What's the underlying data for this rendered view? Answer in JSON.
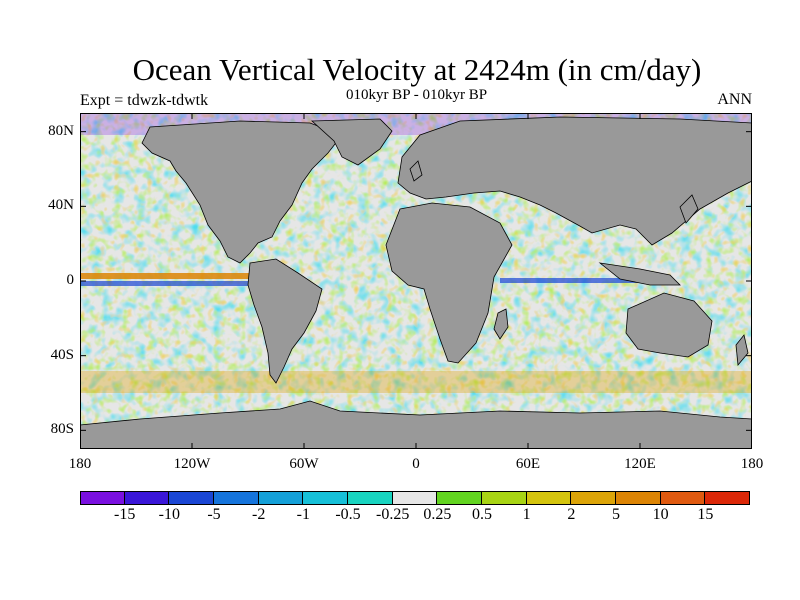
{
  "header": {
    "title": "Ocean Vertical Velocity at 2424m (in cm/day)",
    "left_subtitle": "Expt = tdwzk-tdwtk",
    "center_subtitle": "010kyr BP - 010kyr BP",
    "right_subtitle": "ANN"
  },
  "map": {
    "land_color": "#999999",
    "coast_color": "#000000",
    "lat_ticks": [
      {
        "label": "80N",
        "lat": 80
      },
      {
        "label": "40N",
        "lat": 40
      },
      {
        "label": "0",
        "lat": 0
      },
      {
        "label": "40S",
        "lat": -40
      },
      {
        "label": "80S",
        "lat": -80
      }
    ],
    "lon_ticks": [
      {
        "label": "180",
        "lon": 0
      },
      {
        "label": "120W",
        "lon": 60
      },
      {
        "label": "60W",
        "lon": 120
      },
      {
        "label": "0",
        "lon": 180
      },
      {
        "label": "60E",
        "lon": 240
      },
      {
        "label": "120E",
        "lon": 300
      },
      {
        "label": "180",
        "lon": 360
      }
    ]
  },
  "colorbar": {
    "colors": [
      "#7a10e0",
      "#3a16d8",
      "#1a46d4",
      "#1574dc",
      "#14a0d8",
      "#16c0d8",
      "#18d4c0",
      "#e6e6e6",
      "#62d420",
      "#a8d414",
      "#d4c40e",
      "#dca408",
      "#dc8404",
      "#e05a10",
      "#dc2808"
    ],
    "labels": [
      "-15",
      "-10",
      "-5",
      "-2",
      "-1",
      "-0.5",
      "-0.25",
      "0.25",
      "0.5",
      "1",
      "2",
      "5",
      "10",
      "15"
    ]
  }
}
